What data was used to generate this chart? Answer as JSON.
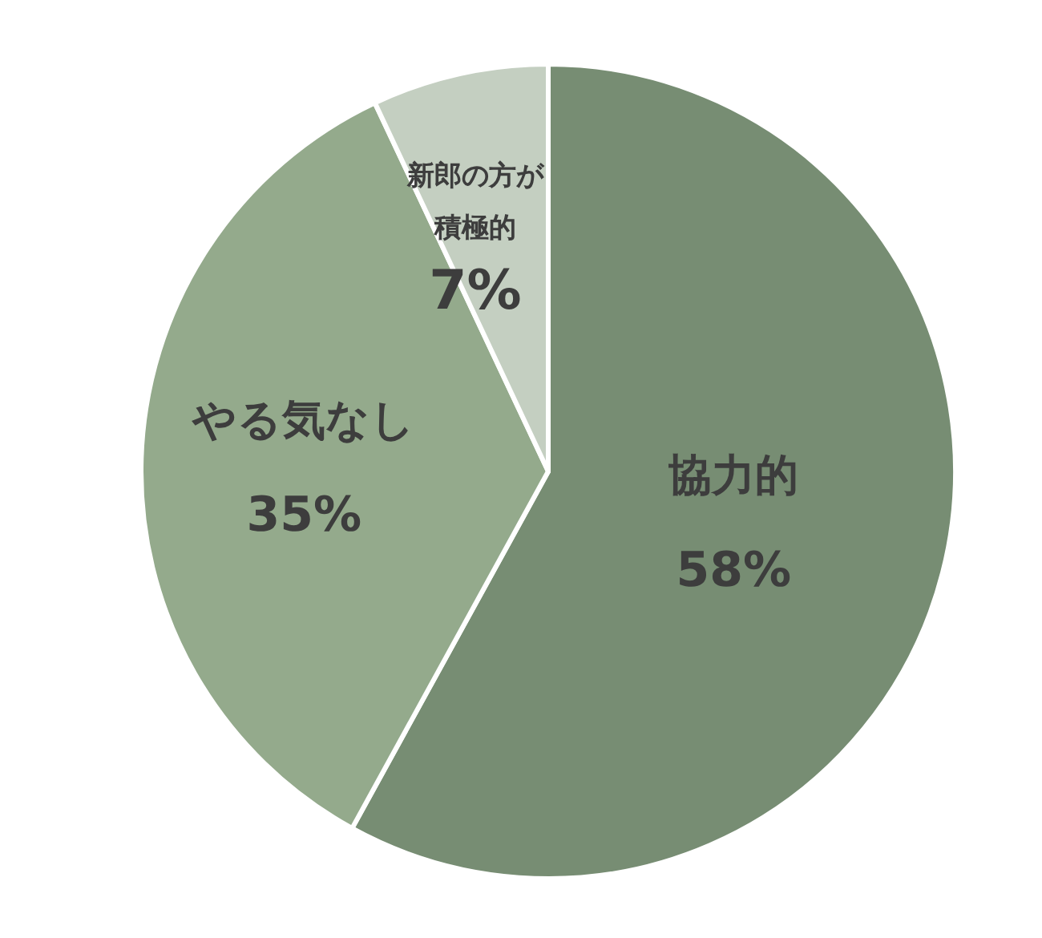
{
  "chart_data": {
    "type": "pie",
    "categories": [
      "協力的",
      "やる気なし",
      "新郎の方が積極的"
    ],
    "values": [
      58,
      35,
      7
    ],
    "colors": [
      "#778d73",
      "#94aa8c",
      "#c4cfc1"
    ],
    "value_labels": [
      "58%",
      "35%",
      "7%"
    ]
  }
}
